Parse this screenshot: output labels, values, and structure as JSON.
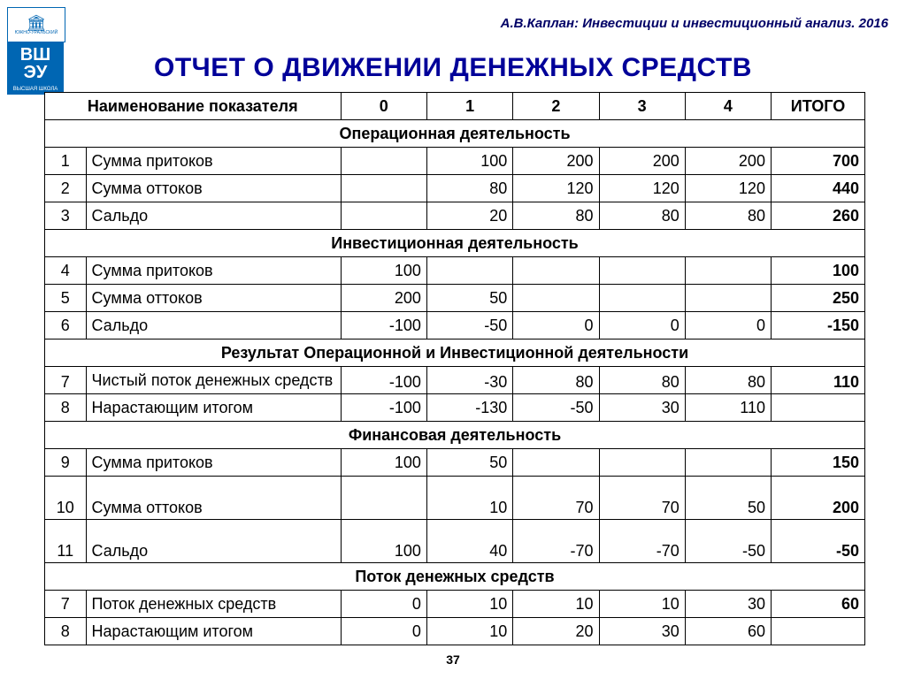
{
  "header": {
    "author_line": "А.В.Каплан: Инвестиции и инвестиционный анализ. 2016",
    "logo_top_sub": "ЮЖНО-УРАЛЬСКИЙ",
    "logo_mid_1": "ВШ",
    "logo_mid_2": "ЭУ",
    "logo_bot": "ВЫСШАЯ ШКОЛА"
  },
  "title": "ОТЧЕТ О ДВИЖЕНИИ ДЕНЕЖНЫХ СРЕДСТВ",
  "columns": {
    "name": "Наименование показателя",
    "p0": "0",
    "p1": "1",
    "p2": "2",
    "p3": "3",
    "p4": "4",
    "total": "ИТОГО"
  },
  "sections": {
    "s1": "Операционная деятельность",
    "s2": "Инвестиционная деятельность",
    "s3": "Результат Операционной и Инвестиционной деятельности",
    "s4": "Финансовая  деятельность",
    "s5": "Поток денежных средств"
  },
  "rows": {
    "r1": {
      "n": "1",
      "name": "Сумма притоков",
      "v0": "",
      "v1": "100",
      "v2": "200",
      "v3": "200",
      "v4": "200",
      "t": "700"
    },
    "r2": {
      "n": "2",
      "name": "Сумма оттоков",
      "v0": "",
      "v1": "80",
      "v2": "120",
      "v3": "120",
      "v4": "120",
      "t": "440"
    },
    "r3": {
      "n": "3",
      "name": "Сальдо",
      "v0": "",
      "v1": "20",
      "v2": "80",
      "v3": "80",
      "v4": "80",
      "t": "260"
    },
    "r4": {
      "n": "4",
      "name": "Сумма притоков",
      "v0": "100",
      "v1": "",
      "v2": "",
      "v3": "",
      "v4": "",
      "t": "100"
    },
    "r5": {
      "n": "5",
      "name": "Сумма оттоков",
      "v0": "200",
      "v1": "50",
      "v2": "",
      "v3": "",
      "v4": "",
      "t": "250"
    },
    "r6": {
      "n": "6",
      "name": "Сальдо",
      "v0": "-100",
      "v1": "-50",
      "v2": "0",
      "v3": "0",
      "v4": "0",
      "t": "-150"
    },
    "r7": {
      "n": "7",
      "name": "Чистый поток денежных средств",
      "v0": "-100",
      "v1": "-30",
      "v2": "80",
      "v3": "80",
      "v4": "80",
      "t": "110"
    },
    "r8": {
      "n": "8",
      "name": "Нарастающим итогом",
      "v0": "-100",
      "v1": "-130",
      "v2": "-50",
      "v3": "30",
      "v4": "110",
      "t": ""
    },
    "r9": {
      "n": "9",
      "name": "Сумма притоков",
      "v0": "100",
      "v1": "50",
      "v2": "",
      "v3": "",
      "v4": "",
      "t": "150"
    },
    "r10": {
      "n": "10",
      "name": "Сумма оттоков",
      "v0": "",
      "v1": "10",
      "v2": "70",
      "v3": "70",
      "v4": "50",
      "t": "200"
    },
    "r11": {
      "n": "11",
      "name": "Сальдо",
      "v0": "100",
      "v1": "40",
      "v2": "-70",
      "v3": "-70",
      "v4": "-50",
      "t": "-50"
    },
    "r12": {
      "n": "7",
      "name": "Поток денежных средств",
      "v0": "0",
      "v1": "10",
      "v2": "10",
      "v3": "10",
      "v4": "30",
      "t": "60"
    },
    "r13": {
      "n": "8",
      "name": "Нарастающим итогом",
      "v0": "0",
      "v1": "10",
      "v2": "20",
      "v3": "30",
      "v4": "60",
      "t": ""
    }
  },
  "page_number": "37",
  "style": {
    "title_color": "#000099",
    "header_color": "#000066",
    "border_color": "#000000",
    "background": "#ffffff",
    "font_family": "Arial",
    "title_fontsize": 30,
    "cell_fontsize": 18
  }
}
